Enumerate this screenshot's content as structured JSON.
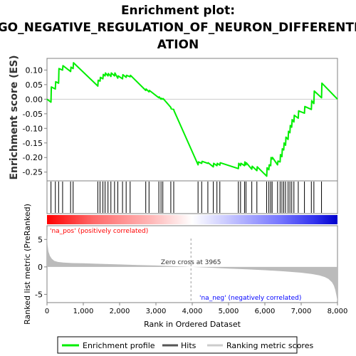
{
  "chart_data": {
    "type": "line",
    "title_lines": [
      "Enrichment plot:",
      "GO_NEGATIVE_REGULATION_OF_NEURON_DIFFERENTI",
      "ATION"
    ],
    "ylabel_top": "Enrichment score (ES)",
    "ylabel_bottom": "Ranked list metric (PreRanked)",
    "xlabel": "Rank in Ordered Dataset",
    "xlim": [
      0,
      8000
    ],
    "x_ticks": [
      0,
      1000,
      2000,
      3000,
      4000,
      5000,
      6000,
      7000,
      8000
    ],
    "x_tick_labels": [
      "0",
      "1,000",
      "2,000",
      "3,000",
      "4,000",
      "5,000",
      "6,000",
      "7,000",
      "8,000"
    ],
    "es_ylim": [
      -0.28,
      0.14
    ],
    "es_ticks": [
      0.1,
      0.05,
      0.0,
      -0.05,
      -0.1,
      -0.15,
      -0.2,
      -0.25
    ],
    "es_tick_labels": [
      "0.10",
      "0.05",
      "0.00",
      "-0.05",
      "-0.10",
      "-0.15",
      "-0.20",
      "-0.25"
    ],
    "metric_ylim": [
      -6.5,
      7.5
    ],
    "metric_ticks": [
      5,
      0,
      -5
    ],
    "metric_tick_labels": [
      "5",
      "0",
      "-5"
    ],
    "es_profile": {
      "x": [
        0,
        110,
        120,
        230,
        240,
        320,
        330,
        430,
        440,
        650,
        660,
        720,
        730,
        1400,
        1410,
        1460,
        1470,
        1540,
        1550,
        1600,
        1610,
        1680,
        1690,
        1760,
        1770,
        1860,
        1870,
        1950,
        1960,
        2080,
        2090,
        2180,
        2190,
        2290,
        2300,
        2720,
        2730,
        2810,
        2820,
        3080,
        3090,
        3140,
        3150,
        3190,
        3200,
        3410,
        3420,
        3490,
        3500,
        4160,
        4170,
        4260,
        4270,
        4430,
        4440,
        4580,
        4590,
        4680,
        4690,
        4760,
        4770,
        5270,
        5280,
        5330,
        5340,
        5440,
        5450,
        5480,
        5490,
        5640,
        5650,
        5780,
        5790,
        6050,
        6060,
        6110,
        6120,
        6160,
        6170,
        6200,
        6210,
        6350,
        6360,
        6420,
        6430,
        6470,
        6480,
        6520,
        6530,
        6570,
        6580,
        6640,
        6650,
        6690,
        6700,
        6740,
        6750,
        6800,
        6810,
        6920,
        6930,
        7090,
        7100,
        7280,
        7290,
        7350,
        7360,
        7560,
        7570,
        8000
      ],
      "y": [
        0.0,
        -0.01,
        0.042,
        0.035,
        0.06,
        0.055,
        0.105,
        0.1,
        0.115,
        0.095,
        0.11,
        0.105,
        0.125,
        0.045,
        0.065,
        0.062,
        0.075,
        0.07,
        0.085,
        0.08,
        0.09,
        0.08,
        0.088,
        0.078,
        0.09,
        0.08,
        0.09,
        0.072,
        0.08,
        0.07,
        0.084,
        0.075,
        0.082,
        0.077,
        0.082,
        0.03,
        0.035,
        0.025,
        0.03,
        0.005,
        0.008,
        0.0,
        0.003,
        0.0,
        0.002,
        -0.028,
        -0.033,
        -0.035,
        -0.04,
        -0.225,
        -0.215,
        -0.22,
        -0.213,
        -0.22,
        -0.218,
        -0.232,
        -0.22,
        -0.228,
        -0.22,
        -0.226,
        -0.218,
        -0.238,
        -0.22,
        -0.228,
        -0.22,
        -0.228,
        -0.215,
        -0.225,
        -0.218,
        -0.24,
        -0.23,
        -0.245,
        -0.232,
        -0.264,
        -0.235,
        -0.242,
        -0.225,
        -0.228,
        -0.2,
        -0.205,
        -0.2,
        -0.225,
        -0.212,
        -0.215,
        -0.19,
        -0.197,
        -0.17,
        -0.174,
        -0.15,
        -0.158,
        -0.13,
        -0.138,
        -0.11,
        -0.115,
        -0.09,
        -0.096,
        -0.07,
        -0.078,
        -0.055,
        -0.065,
        -0.04,
        -0.048,
        -0.025,
        -0.035,
        -0.005,
        -0.015,
        0.028,
        0.005,
        0.055,
        0.0
      ]
    },
    "hits": [
      110,
      230,
      320,
      430,
      650,
      720,
      1400,
      1460,
      1540,
      1600,
      1680,
      1760,
      1860,
      1950,
      2080,
      2180,
      2290,
      2720,
      2810,
      3080,
      3140,
      3190,
      3410,
      3490,
      4160,
      4260,
      4430,
      4580,
      4680,
      4760,
      5270,
      5330,
      5440,
      5480,
      5640,
      5780,
      6050,
      6110,
      6160,
      6200,
      6350,
      6420,
      6470,
      6520,
      6570,
      6640,
      6690,
      6740,
      6800,
      6920,
      7090,
      7280,
      7350,
      7560
    ],
    "ranked_metric": {
      "x": [
        0,
        15,
        40,
        80,
        130,
        200,
        300,
        450,
        700,
        1000,
        1500,
        2000,
        2500,
        3000,
        3500,
        3965,
        4500,
        5000,
        5500,
        6000,
        6500,
        7000,
        7300,
        7500,
        7650,
        7750,
        7850,
        7900,
        7940,
        7970,
        8000
      ],
      "y": [
        6.0,
        4.0,
        2.8,
        2.0,
        1.5,
        1.1,
        0.9,
        0.8,
        0.7,
        0.65,
        0.55,
        0.45,
        0.35,
        0.25,
        0.12,
        0.0,
        -0.15,
        -0.3,
        -0.45,
        -0.6,
        -0.8,
        -1.05,
        -1.3,
        -1.55,
        -1.85,
        -2.2,
        -2.8,
        -3.4,
        -4.2,
        -5.2,
        -6.3
      ]
    },
    "zero_cross_x": 3965,
    "annotations": {
      "pos_label": "'na_pos' (positively correlated)",
      "neg_label": "'na_neg' (negatively correlated)",
      "zero_cross": "Zero cross at 3965"
    },
    "legend": {
      "items": [
        "Enrichment profile",
        "Hits",
        "Ranking metric scores"
      ],
      "placement": "bottom"
    },
    "colors": {
      "es_line": "#00ee00",
      "hits": "#000000",
      "metric_fill": "#bbbbbb",
      "pos_label": "#ff0000",
      "neg_label": "#0000ff",
      "zero_line": "#999999",
      "heat_pos_strong": "#ff0000",
      "heat_neutral": "#ffffff",
      "heat_neg_strong": "#0000cc"
    }
  }
}
